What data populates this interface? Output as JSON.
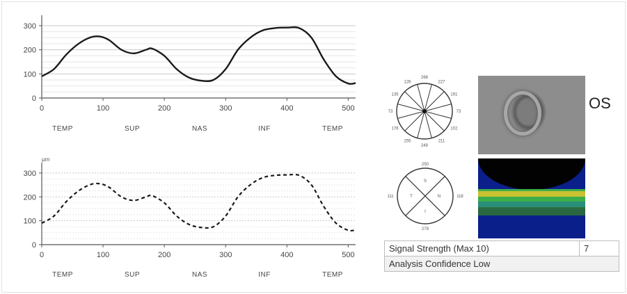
{
  "chart_data": [
    {
      "type": "line",
      "line_style": "solid",
      "x_ticks": [
        0,
        100,
        200,
        300,
        400,
        500
      ],
      "y_ticks": [
        0,
        100,
        200,
        300
      ],
      "xlim": [
        0,
        512
      ],
      "ylim": [
        0,
        320
      ],
      "unit_label": "",
      "sector_labels": [
        "TEMP",
        "SUP",
        "NAS",
        "INF",
        "TEMP"
      ],
      "x": [
        0,
        20,
        40,
        60,
        80,
        95,
        110,
        130,
        150,
        170,
        180,
        200,
        220,
        240,
        260,
        280,
        300,
        320,
        340,
        360,
        380,
        400,
        420,
        440,
        460,
        480,
        500,
        512
      ],
      "y": [
        90,
        120,
        180,
        225,
        252,
        255,
        240,
        200,
        185,
        200,
        205,
        175,
        120,
        85,
        72,
        75,
        120,
        200,
        250,
        280,
        290,
        292,
        290,
        250,
        160,
        90,
        60,
        62
      ]
    },
    {
      "type": "line",
      "line_style": "dashed",
      "x_ticks": [
        0,
        100,
        200,
        300,
        400,
        500
      ],
      "y_ticks": [
        0,
        100,
        200,
        300
      ],
      "xlim": [
        0,
        512
      ],
      "ylim": [
        0,
        320
      ],
      "unit_label": "µm",
      "sector_labels": [
        "TEMP",
        "SUP",
        "NAS",
        "INF",
        "TEMP"
      ],
      "x": [
        0,
        20,
        40,
        60,
        80,
        95,
        110,
        130,
        150,
        170,
        180,
        200,
        220,
        240,
        260,
        280,
        300,
        320,
        340,
        360,
        380,
        400,
        420,
        440,
        460,
        480,
        500,
        512
      ],
      "y": [
        90,
        120,
        180,
        225,
        252,
        255,
        240,
        200,
        185,
        200,
        205,
        175,
        120,
        85,
        72,
        75,
        120,
        200,
        250,
        280,
        290,
        292,
        290,
        250,
        160,
        90,
        60,
        62
      ]
    }
  ],
  "clock_values": [
    "268",
    "227",
    "191",
    "73",
    "102",
    "211",
    "249",
    "255",
    "176",
    "73",
    "135",
    "126"
  ],
  "quadrant_values": [
    "250",
    "118",
    "279",
    "111"
  ],
  "quadrant_letters": [
    "S",
    "N",
    "I",
    "T"
  ],
  "eye_label": "OS",
  "table": {
    "signal_label": "Signal Strength (Max 10)",
    "signal_value": "7",
    "confidence_label": "Analysis Confidence Low"
  }
}
